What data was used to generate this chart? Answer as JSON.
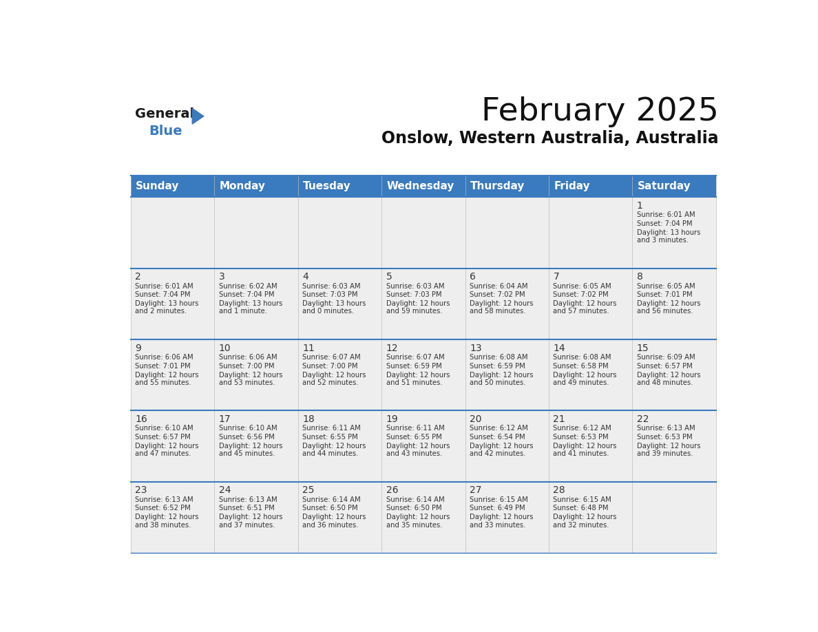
{
  "title": "February 2025",
  "subtitle": "Onslow, Western Australia, Australia",
  "header_color": "#3a7abf",
  "header_text_color": "#ffffff",
  "cell_bg_color": "#eeeeee",
  "border_color": "#3a7abf",
  "day_headers": [
    "Sunday",
    "Monday",
    "Tuesday",
    "Wednesday",
    "Thursday",
    "Friday",
    "Saturday"
  ],
  "days": [
    {
      "day": 1,
      "col": 6,
      "row": 0,
      "sunrise": "6:01 AM",
      "sunset": "7:04 PM",
      "daylight": "13 hours and 3 minutes."
    },
    {
      "day": 2,
      "col": 0,
      "row": 1,
      "sunrise": "6:01 AM",
      "sunset": "7:04 PM",
      "daylight": "13 hours and 2 minutes."
    },
    {
      "day": 3,
      "col": 1,
      "row": 1,
      "sunrise": "6:02 AM",
      "sunset": "7:04 PM",
      "daylight": "13 hours and 1 minute."
    },
    {
      "day": 4,
      "col": 2,
      "row": 1,
      "sunrise": "6:03 AM",
      "sunset": "7:03 PM",
      "daylight": "13 hours and 0 minutes."
    },
    {
      "day": 5,
      "col": 3,
      "row": 1,
      "sunrise": "6:03 AM",
      "sunset": "7:03 PM",
      "daylight": "12 hours and 59 minutes."
    },
    {
      "day": 6,
      "col": 4,
      "row": 1,
      "sunrise": "6:04 AM",
      "sunset": "7:02 PM",
      "daylight": "12 hours and 58 minutes."
    },
    {
      "day": 7,
      "col": 5,
      "row": 1,
      "sunrise": "6:05 AM",
      "sunset": "7:02 PM",
      "daylight": "12 hours and 57 minutes."
    },
    {
      "day": 8,
      "col": 6,
      "row": 1,
      "sunrise": "6:05 AM",
      "sunset": "7:01 PM",
      "daylight": "12 hours and 56 minutes."
    },
    {
      "day": 9,
      "col": 0,
      "row": 2,
      "sunrise": "6:06 AM",
      "sunset": "7:01 PM",
      "daylight": "12 hours and 55 minutes."
    },
    {
      "day": 10,
      "col": 1,
      "row": 2,
      "sunrise": "6:06 AM",
      "sunset": "7:00 PM",
      "daylight": "12 hours and 53 minutes."
    },
    {
      "day": 11,
      "col": 2,
      "row": 2,
      "sunrise": "6:07 AM",
      "sunset": "7:00 PM",
      "daylight": "12 hours and 52 minutes."
    },
    {
      "day": 12,
      "col": 3,
      "row": 2,
      "sunrise": "6:07 AM",
      "sunset": "6:59 PM",
      "daylight": "12 hours and 51 minutes."
    },
    {
      "day": 13,
      "col": 4,
      "row": 2,
      "sunrise": "6:08 AM",
      "sunset": "6:59 PM",
      "daylight": "12 hours and 50 minutes."
    },
    {
      "day": 14,
      "col": 5,
      "row": 2,
      "sunrise": "6:08 AM",
      "sunset": "6:58 PM",
      "daylight": "12 hours and 49 minutes."
    },
    {
      "day": 15,
      "col": 6,
      "row": 2,
      "sunrise": "6:09 AM",
      "sunset": "6:57 PM",
      "daylight": "12 hours and 48 minutes."
    },
    {
      "day": 16,
      "col": 0,
      "row": 3,
      "sunrise": "6:10 AM",
      "sunset": "6:57 PM",
      "daylight": "12 hours and 47 minutes."
    },
    {
      "day": 17,
      "col": 1,
      "row": 3,
      "sunrise": "6:10 AM",
      "sunset": "6:56 PM",
      "daylight": "12 hours and 45 minutes."
    },
    {
      "day": 18,
      "col": 2,
      "row": 3,
      "sunrise": "6:11 AM",
      "sunset": "6:55 PM",
      "daylight": "12 hours and 44 minutes."
    },
    {
      "day": 19,
      "col": 3,
      "row": 3,
      "sunrise": "6:11 AM",
      "sunset": "6:55 PM",
      "daylight": "12 hours and 43 minutes."
    },
    {
      "day": 20,
      "col": 4,
      "row": 3,
      "sunrise": "6:12 AM",
      "sunset": "6:54 PM",
      "daylight": "12 hours and 42 minutes."
    },
    {
      "day": 21,
      "col": 5,
      "row": 3,
      "sunrise": "6:12 AM",
      "sunset": "6:53 PM",
      "daylight": "12 hours and 41 minutes."
    },
    {
      "day": 22,
      "col": 6,
      "row": 3,
      "sunrise": "6:13 AM",
      "sunset": "6:53 PM",
      "daylight": "12 hours and 39 minutes."
    },
    {
      "day": 23,
      "col": 0,
      "row": 4,
      "sunrise": "6:13 AM",
      "sunset": "6:52 PM",
      "daylight": "12 hours and 38 minutes."
    },
    {
      "day": 24,
      "col": 1,
      "row": 4,
      "sunrise": "6:13 AM",
      "sunset": "6:51 PM",
      "daylight": "12 hours and 37 minutes."
    },
    {
      "day": 25,
      "col": 2,
      "row": 4,
      "sunrise": "6:14 AM",
      "sunset": "6:50 PM",
      "daylight": "12 hours and 36 minutes."
    },
    {
      "day": 26,
      "col": 3,
      "row": 4,
      "sunrise": "6:14 AM",
      "sunset": "6:50 PM",
      "daylight": "12 hours and 35 minutes."
    },
    {
      "day": 27,
      "col": 4,
      "row": 4,
      "sunrise": "6:15 AM",
      "sunset": "6:49 PM",
      "daylight": "12 hours and 33 minutes."
    },
    {
      "day": 28,
      "col": 5,
      "row": 4,
      "sunrise": "6:15 AM",
      "sunset": "6:48 PM",
      "daylight": "12 hours and 32 minutes."
    }
  ],
  "num_rows": 5,
  "num_cols": 7,
  "logo_text1": "General",
  "logo_text2": "Blue",
  "logo_color1": "#1a1a1a",
  "logo_color2": "#3a7abf",
  "logo_triangle_color": "#3a7abf"
}
